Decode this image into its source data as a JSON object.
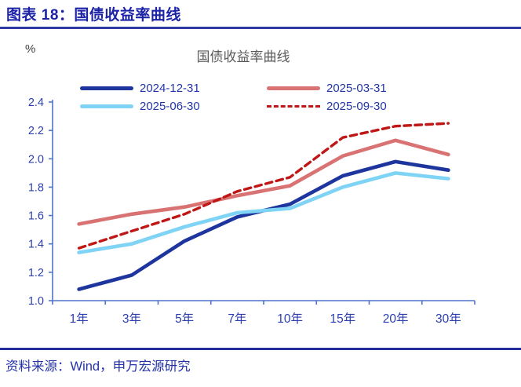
{
  "header": {
    "title": "图表 18：国债收益率曲线"
  },
  "chart": {
    "unit_label": "%",
    "title": "国债收益率曲线"
  },
  "chart_data": {
    "type": "line",
    "title": "国债收益率曲线",
    "unit": "%",
    "categories": [
      "1年",
      "3年",
      "5年",
      "7年",
      "10年",
      "15年",
      "20年",
      "30年"
    ],
    "series": [
      {
        "name": "2024-12-31",
        "color": "#1e359e",
        "style": "solid",
        "values": [
          1.08,
          1.18,
          1.42,
          1.59,
          1.68,
          1.88,
          1.98,
          1.92
        ]
      },
      {
        "name": "2025-03-31",
        "color": "#d97373",
        "style": "solid",
        "values": [
          1.54,
          1.61,
          1.66,
          1.74,
          1.81,
          2.02,
          2.13,
          2.03
        ]
      },
      {
        "name": "2025-06-30",
        "color": "#7fd3f5",
        "style": "solid",
        "values": [
          1.34,
          1.4,
          1.52,
          1.62,
          1.65,
          1.8,
          1.9,
          1.86
        ]
      },
      {
        "name": "2025-09-30",
        "color": "#bf1616",
        "style": "dashed",
        "values": [
          1.37,
          1.49,
          1.61,
          1.77,
          1.87,
          2.15,
          2.23,
          2.25
        ]
      }
    ],
    "ylim": [
      1.0,
      2.4
    ],
    "ytick_step": 0.2,
    "ytick_labels": [
      "1.0",
      "1.2",
      "1.4",
      "1.6",
      "1.8",
      "2.0",
      "2.2",
      "2.4"
    ],
    "legend_position": "top",
    "grid": false,
    "axis_color": "#4f74c8",
    "tick_label_color": "#2b3fae"
  },
  "footer": {
    "source": "资料来源：Wind，申万宏源研究"
  }
}
